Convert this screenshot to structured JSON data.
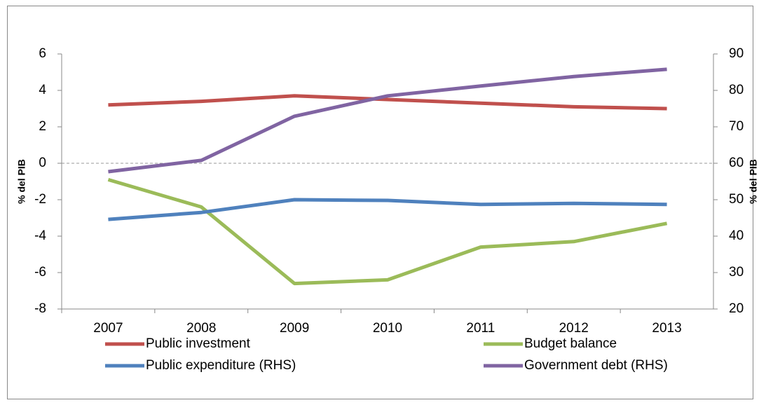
{
  "chart_data": {
    "type": "line",
    "categories": [
      "2007",
      "2008",
      "2009",
      "2010",
      "2011",
      "2012",
      "2013"
    ],
    "y_label": "% del PIB",
    "y2_label": "% del PIB",
    "ylim": [
      -8,
      6
    ],
    "yticks": [
      -8,
      -6,
      -4,
      -2,
      0,
      2,
      4,
      6
    ],
    "y2lim": [
      20,
      90
    ],
    "y2ticks": [
      20,
      30,
      40,
      50,
      60,
      70,
      80,
      90
    ],
    "zero_line": true,
    "series": [
      {
        "name": "Public investment",
        "color": "#c0504d",
        "values": [
          3.2,
          3.4,
          3.7,
          3.5,
          3.3,
          3.1,
          3.0
        ]
      },
      {
        "name": "Budget balance",
        "color": "#9bbb59",
        "values": [
          -0.9,
          -2.4,
          -6.6,
          -6.4,
          -4.6,
          -4.3,
          -3.3
        ]
      },
      {
        "name": "Public expenditure (RHS)",
        "color": "#4f81bd",
        "axis": "y2",
        "values": [
          44.6,
          46.5,
          50.0,
          49.8,
          48.7,
          49.0,
          48.7
        ]
      },
      {
        "name": "Government debt (RHS)",
        "color": "#8064a2",
        "axis": "y2",
        "values": [
          57.7,
          60.8,
          72.9,
          78.5,
          81.2,
          83.8,
          85.8
        ]
      }
    ]
  }
}
